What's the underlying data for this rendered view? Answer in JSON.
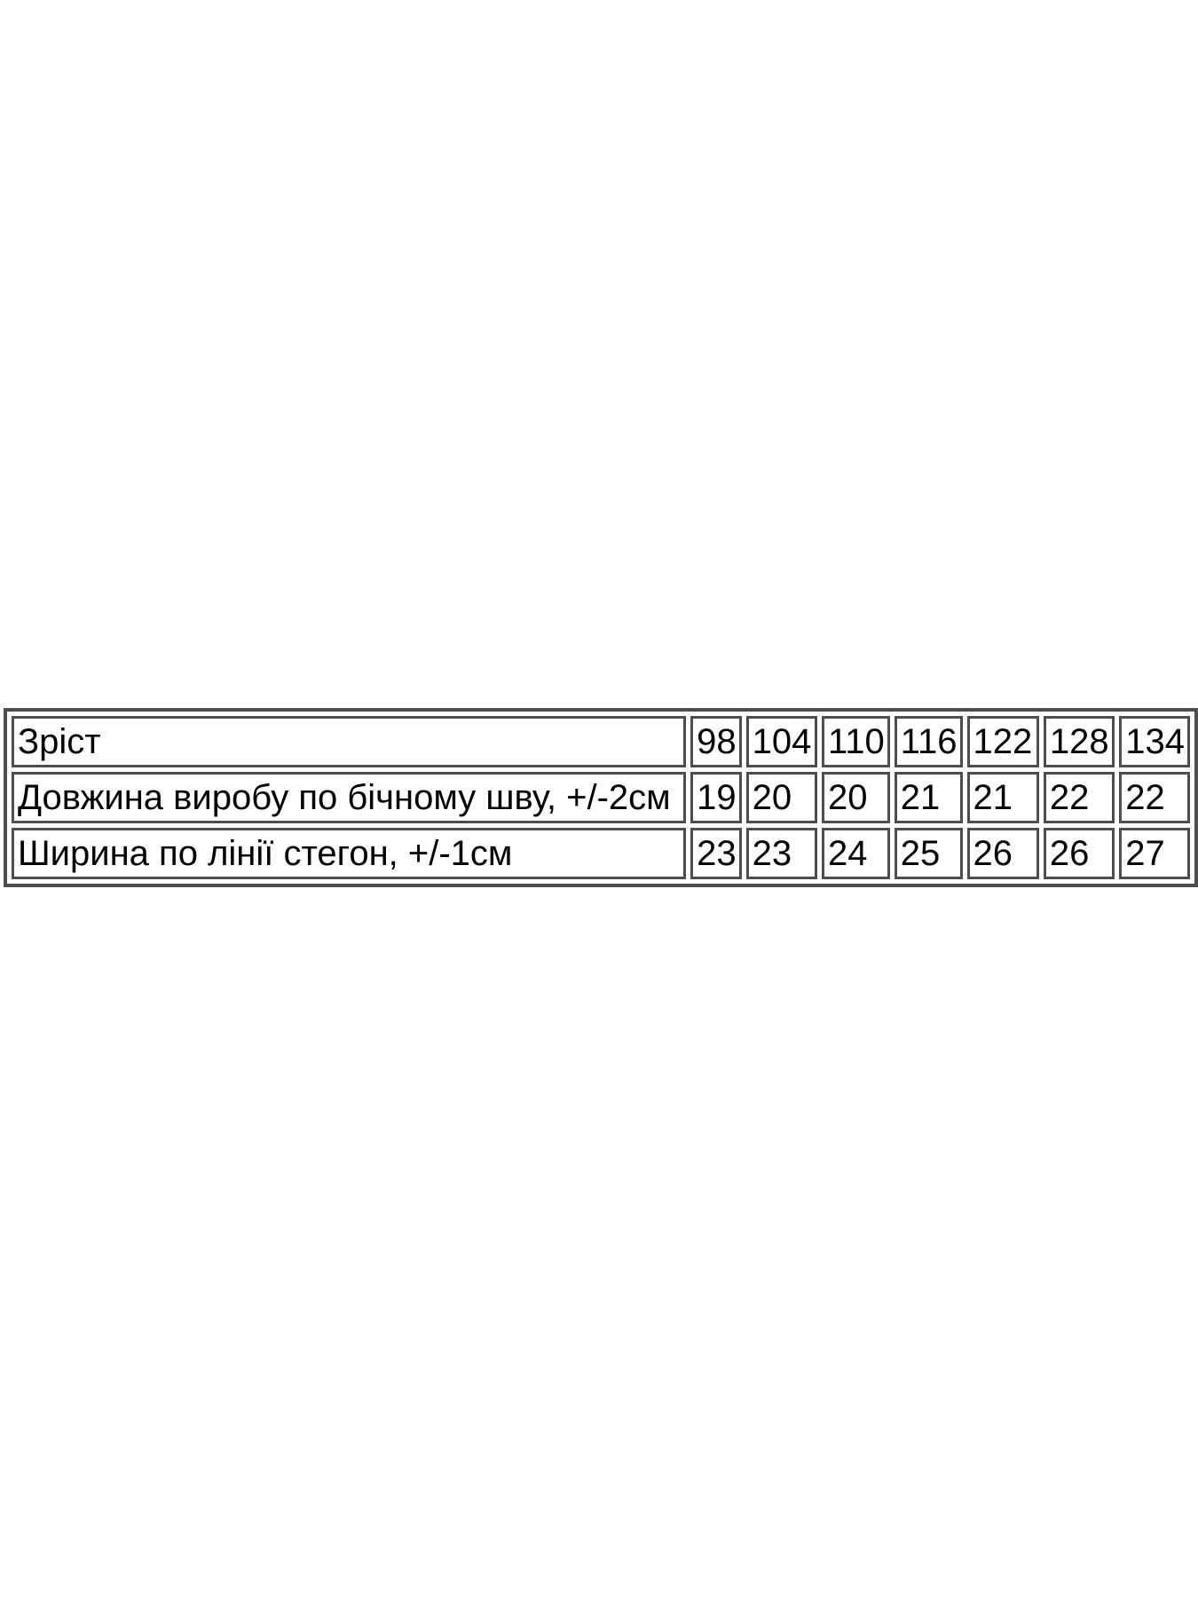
{
  "page": {
    "background_color": "#ffffff"
  },
  "size_chart": {
    "border_color": "#4d4d4d",
    "text_color": "#000000",
    "rows": [
      {
        "label": "Зріст",
        "values": [
          "98",
          "104",
          "110",
          "116",
          "122",
          "128",
          "134"
        ]
      },
      {
        "label": "Довжина виробу по бічному шву, +/-2см",
        "values": [
          "19",
          "20",
          "20",
          "21",
          "21",
          "22",
          "22"
        ]
      },
      {
        "label": "Ширина по лінії стегон, +/-1см",
        "values": [
          "23",
          "23",
          "24",
          "25",
          "26",
          "26",
          "27"
        ]
      }
    ]
  },
  "chart_data": {
    "type": "table",
    "title": "",
    "row_headers": [
      "Зріст",
      "Довжина виробу по бічному шву, +/-2см",
      "Ширина по лінії стегон, +/-1см"
    ],
    "columns": [
      "98",
      "104",
      "110",
      "116",
      "122",
      "128",
      "134"
    ],
    "rows": [
      [
        98,
        104,
        110,
        116,
        122,
        128,
        134
      ],
      [
        19,
        20,
        20,
        21,
        21,
        22,
        22
      ],
      [
        23,
        23,
        24,
        25,
        26,
        26,
        27
      ]
    ]
  }
}
